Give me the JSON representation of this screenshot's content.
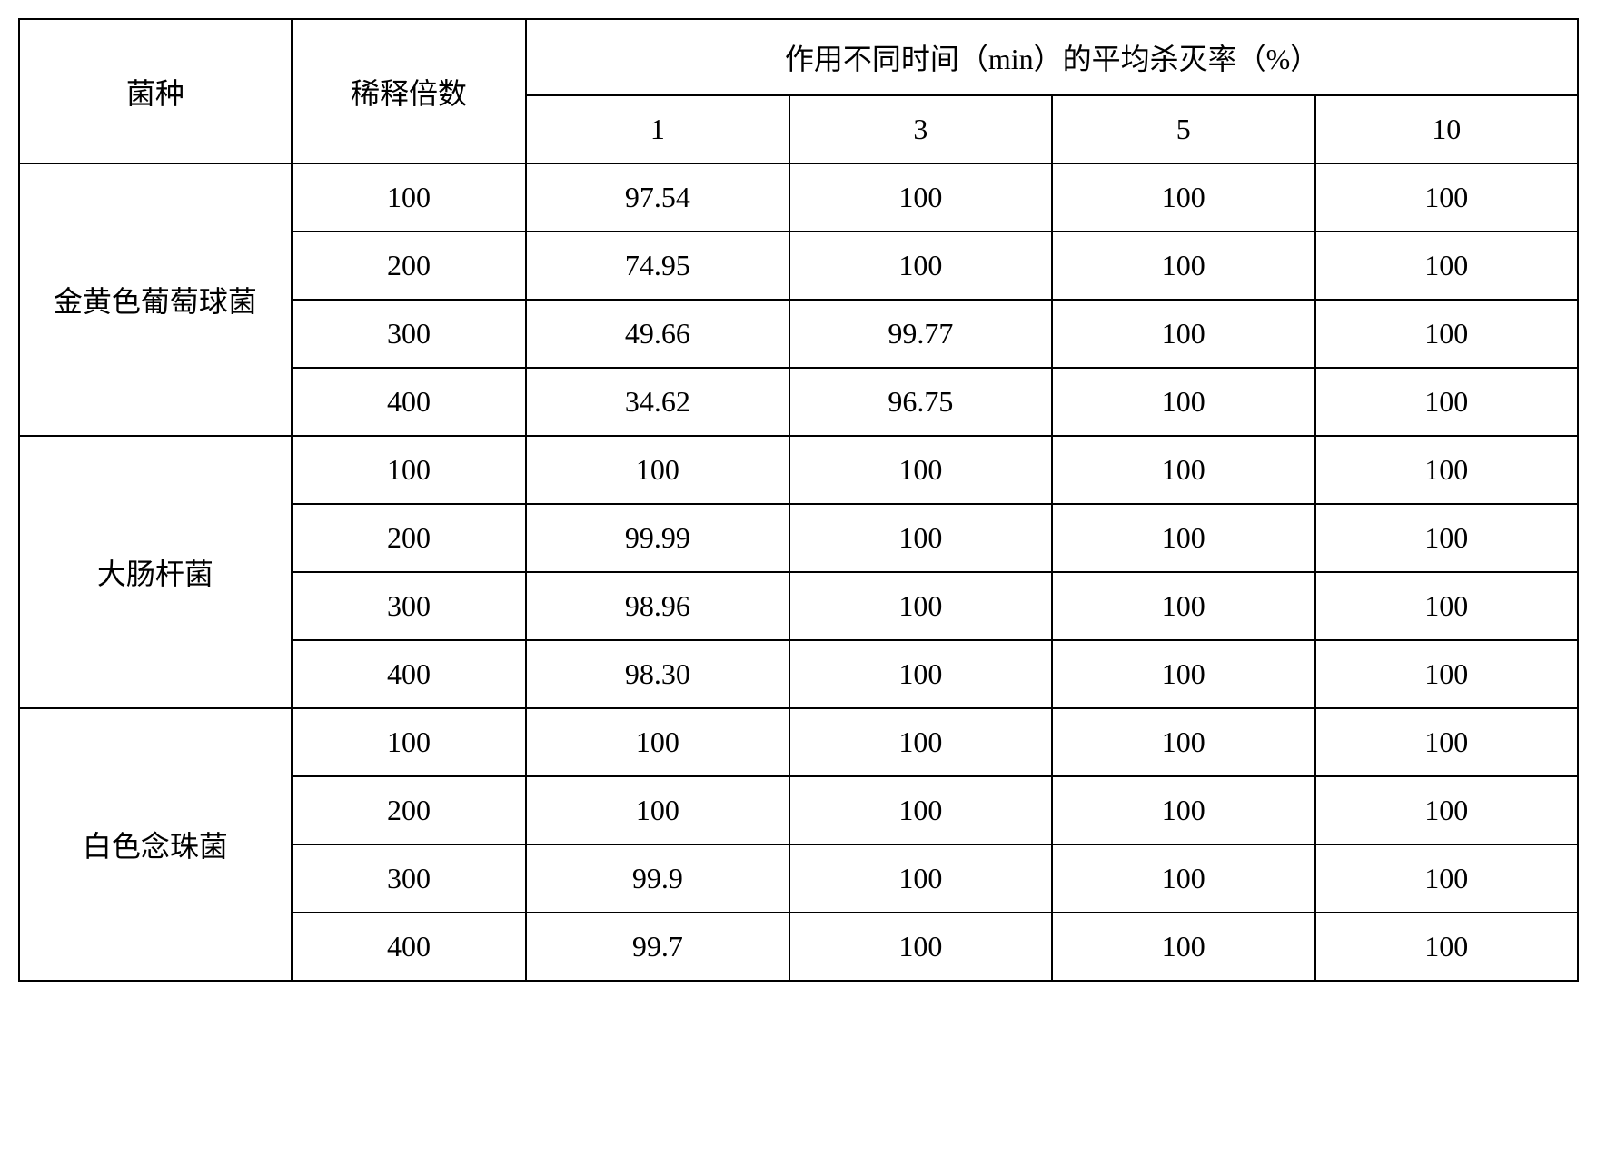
{
  "table": {
    "border_color": "#000000",
    "background_color": "#ffffff",
    "text_color": "#000000",
    "font_size_pt": 24,
    "font_family": "SimSun",
    "header": {
      "col_species": "菌种",
      "col_dilution": "稀释倍数",
      "col_avg_kill_rate": "作用不同时间（min）的平均杀灭率（%）",
      "time_labels": [
        "1",
        "3",
        "5",
        "10"
      ]
    },
    "groups": [
      {
        "species": "金黄色葡萄球菌",
        "rows": [
          {
            "dilution": "100",
            "vals": [
              "97.54",
              "100",
              "100",
              "100"
            ]
          },
          {
            "dilution": "200",
            "vals": [
              "74.95",
              "100",
              "100",
              "100"
            ]
          },
          {
            "dilution": "300",
            "vals": [
              "49.66",
              "99.77",
              "100",
              "100"
            ]
          },
          {
            "dilution": "400",
            "vals": [
              "34.62",
              "96.75",
              "100",
              "100"
            ]
          }
        ]
      },
      {
        "species": "大肠杆菌",
        "rows": [
          {
            "dilution": "100",
            "vals": [
              "100",
              "100",
              "100",
              "100"
            ]
          },
          {
            "dilution": "200",
            "vals": [
              "99.99",
              "100",
              "100",
              "100"
            ]
          },
          {
            "dilution": "300",
            "vals": [
              "98.96",
              "100",
              "100",
              "100"
            ]
          },
          {
            "dilution": "400",
            "vals": [
              "98.30",
              "100",
              "100",
              "100"
            ]
          }
        ]
      },
      {
        "species": "白色念珠菌",
        "rows": [
          {
            "dilution": "100",
            "vals": [
              "100",
              "100",
              "100",
              "100"
            ]
          },
          {
            "dilution": "200",
            "vals": [
              "100",
              "100",
              "100",
              "100"
            ]
          },
          {
            "dilution": "300",
            "vals": [
              "99.9",
              "100",
              "100",
              "100"
            ]
          },
          {
            "dilution": "400",
            "vals": [
              "99.7",
              "100",
              "100",
              "100"
            ]
          }
        ]
      }
    ]
  }
}
